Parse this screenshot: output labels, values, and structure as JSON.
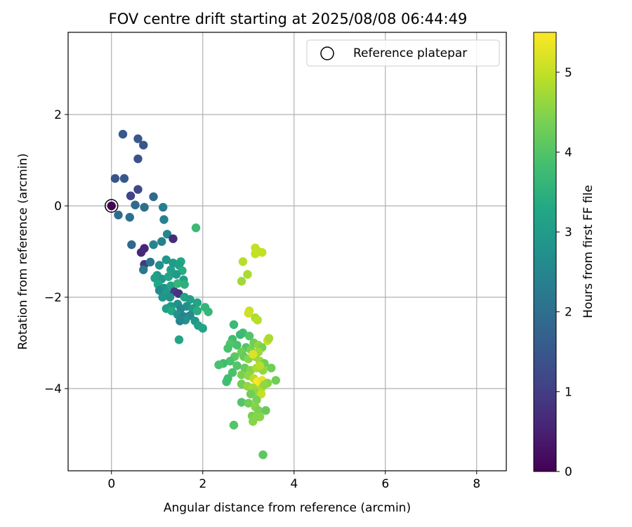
{
  "chart_data": {
    "type": "scatter",
    "title": "FOV centre drift starting at 2025/08/08 06:44:49",
    "xlabel": "Angular distance from reference (arcmin)",
    "ylabel": "Rotation from reference (arcmin)",
    "xlim": [
      -0.95,
      8.65
    ],
    "ylim": [
      -5.8,
      3.8
    ],
    "x_ticks": [
      0,
      2,
      4,
      6,
      8
    ],
    "y_ticks": [
      -4,
      -2,
      0,
      2
    ],
    "grid": true,
    "legend": {
      "placement": "top-right",
      "entries": [
        "Reference platepar"
      ]
    },
    "reference_point": {
      "x": 0,
      "y": 0
    },
    "colorbar": {
      "label": "Hours from first FF file",
      "range": [
        0,
        5.5
      ],
      "ticks": [
        0,
        1,
        2,
        3,
        4,
        5
      ],
      "colormap": "viridis"
    },
    "points": [
      [
        0,
        0,
        0.05
      ],
      [
        0.25,
        1.57,
        1.55
      ],
      [
        0.58,
        1.47,
        1.5
      ],
      [
        0.7,
        1.33,
        1.45
      ],
      [
        0.58,
        1.03,
        1.4
      ],
      [
        0.08,
        0.6,
        1.4
      ],
      [
        0.28,
        0.6,
        1.5
      ],
      [
        0.58,
        0.36,
        1.2
      ],
      [
        0.42,
        0.22,
        1.1
      ],
      [
        0.92,
        0.2,
        1.9
      ],
      [
        0.52,
        0.02,
        1.9
      ],
      [
        0.72,
        -0.03,
        2.0
      ],
      [
        1.13,
        -0.03,
        2.3
      ],
      [
        0.15,
        -0.2,
        1.9
      ],
      [
        0.4,
        -0.25,
        2.0
      ],
      [
        1.15,
        -0.3,
        2.4
      ],
      [
        1.22,
        -0.62,
        2.5
      ],
      [
        1.35,
        -0.72,
        0.7
      ],
      [
        1.1,
        -0.78,
        2.4
      ],
      [
        0.44,
        -0.85,
        1.9
      ],
      [
        0.92,
        -0.85,
        2.5
      ],
      [
        0.72,
        -0.93,
        0.6
      ],
      [
        0.65,
        -1.02,
        0.6
      ],
      [
        0.72,
        -1.28,
        0.9
      ],
      [
        0.85,
        -1.23,
        2.1
      ],
      [
        0.7,
        -1.4,
        2.2
      ],
      [
        1.05,
        -1.3,
        2.7
      ],
      [
        1.2,
        -1.18,
        2.9
      ],
      [
        1.35,
        -1.25,
        3.0
      ],
      [
        1.52,
        -1.22,
        3.3
      ],
      [
        1.48,
        -1.3,
        3.1
      ],
      [
        1.3,
        -1.4,
        3.1
      ],
      [
        1.55,
        -1.42,
        3.4
      ],
      [
        1.0,
        -1.52,
        3.0
      ],
      [
        1.1,
        -1.6,
        2.9
      ],
      [
        1.25,
        -1.55,
        3.2
      ],
      [
        1.42,
        -1.5,
        3.0
      ],
      [
        1.58,
        -1.62,
        3.1
      ],
      [
        0.95,
        -1.58,
        3.1
      ],
      [
        1.02,
        -1.72,
        3.3
      ],
      [
        1.15,
        -1.8,
        2.8
      ],
      [
        1.3,
        -1.75,
        3.2
      ],
      [
        1.45,
        -1.7,
        3.6
      ],
      [
        1.6,
        -1.72,
        3.5
      ],
      [
        1.05,
        -1.85,
        2.6
      ],
      [
        1.2,
        -1.9,
        3.0
      ],
      [
        1.38,
        -1.88,
        1.0
      ],
      [
        1.47,
        -1.92,
        0.8
      ],
      [
        1.28,
        -2.0,
        2.8
      ],
      [
        1.12,
        -2.0,
        2.9
      ],
      [
        1.6,
        -2.0,
        3.2
      ],
      [
        1.72,
        -2.05,
        3.1
      ],
      [
        1.88,
        -2.12,
        3.2
      ],
      [
        1.3,
        -2.2,
        3.0
      ],
      [
        1.45,
        -2.15,
        2.8
      ],
      [
        1.52,
        -2.25,
        2.5
      ],
      [
        1.2,
        -2.25,
        3.1
      ],
      [
        1.32,
        -2.3,
        3.3
      ],
      [
        1.65,
        -2.2,
        2.7
      ],
      [
        1.78,
        -2.25,
        3.0
      ],
      [
        1.88,
        -2.3,
        3.4
      ],
      [
        2.05,
        -2.22,
        3.6
      ],
      [
        2.12,
        -2.32,
        3.6
      ],
      [
        1.45,
        -2.38,
        2.8
      ],
      [
        1.58,
        -2.42,
        2.4
      ],
      [
        1.72,
        -2.4,
        2.6
      ],
      [
        1.62,
        -2.5,
        2.8
      ],
      [
        1.5,
        -2.52,
        2.5
      ],
      [
        1.83,
        -2.52,
        2.9
      ],
      [
        1.9,
        -2.62,
        3.1
      ],
      [
        2.0,
        -2.68,
        3.2
      ],
      [
        1.48,
        -2.93,
        3.2
      ],
      [
        1.85,
        -0.48,
        3.7
      ],
      [
        2.68,
        -2.6,
        3.7
      ],
      [
        2.88,
        -2.78,
        3.8
      ],
      [
        3.02,
        -2.85,
        4.0
      ],
      [
        2.82,
        -2.82,
        3.7
      ],
      [
        2.65,
        -2.92,
        3.8
      ],
      [
        2.6,
        -3.02,
        4.0
      ],
      [
        2.55,
        -3.12,
        3.9
      ],
      [
        2.75,
        -3.05,
        3.9
      ],
      [
        2.95,
        -3.1,
        4.0
      ],
      [
        2.85,
        -3.2,
        4.3
      ],
      [
        3.05,
        -3.15,
        4.4
      ],
      [
        3.12,
        -3.0,
        4.3
      ],
      [
        3.22,
        -3.05,
        4.6
      ],
      [
        3.3,
        -3.1,
        4.4
      ],
      [
        3.42,
        -2.95,
        5.0
      ],
      [
        3.45,
        -2.9,
        4.8
      ],
      [
        2.7,
        -3.3,
        4.1
      ],
      [
        2.9,
        -3.3,
        4.2
      ],
      [
        3.0,
        -3.35,
        4.5
      ],
      [
        3.15,
        -3.3,
        4.6
      ],
      [
        3.25,
        -3.4,
        4.7
      ],
      [
        3.35,
        -3.45,
        4.3
      ],
      [
        2.6,
        -3.4,
        3.9
      ],
      [
        2.45,
        -3.45,
        3.8
      ],
      [
        2.35,
        -3.48,
        3.9
      ],
      [
        2.75,
        -3.5,
        4.0
      ],
      [
        2.92,
        -3.55,
        4.2
      ],
      [
        3.05,
        -3.6,
        4.5
      ],
      [
        3.18,
        -3.55,
        4.8
      ],
      [
        3.32,
        -3.6,
        4.6
      ],
      [
        3.5,
        -3.55,
        4.3
      ],
      [
        2.65,
        -3.65,
        3.9
      ],
      [
        2.85,
        -3.7,
        4.4
      ],
      [
        3.0,
        -3.72,
        4.6
      ],
      [
        3.12,
        -3.78,
        4.9
      ],
      [
        3.2,
        -3.85,
        5.5
      ],
      [
        3.3,
        -3.82,
        5.3
      ],
      [
        3.42,
        -3.88,
        4.5
      ],
      [
        2.55,
        -3.78,
        3.8
      ],
      [
        2.52,
        -3.85,
        3.8
      ],
      [
        2.85,
        -3.9,
        4.3
      ],
      [
        2.98,
        -3.95,
        4.6
      ],
      [
        3.1,
        -3.98,
        4.7
      ],
      [
        3.28,
        -4.0,
        4.8
      ],
      [
        3.35,
        -3.92,
        4.6
      ],
      [
        3.6,
        -3.82,
        4.3
      ],
      [
        3.15,
        -4.08,
        4.6
      ],
      [
        3.05,
        -4.12,
        4.3
      ],
      [
        3.28,
        -4.12,
        5.0
      ],
      [
        3.18,
        -4.25,
        4.4
      ],
      [
        2.85,
        -4.3,
        4.0
      ],
      [
        3.0,
        -4.32,
        4.3
      ],
      [
        3.15,
        -4.4,
        4.5
      ],
      [
        3.22,
        -4.48,
        4.4
      ],
      [
        3.38,
        -4.48,
        4.2
      ],
      [
        3.08,
        -4.6,
        4.4
      ],
      [
        3.18,
        -4.62,
        4.5
      ],
      [
        3.25,
        -4.62,
        4.5
      ],
      [
        3.1,
        -4.72,
        4.5
      ],
      [
        2.68,
        -4.8,
        4.0
      ],
      [
        3.32,
        -5.45,
        4.1
      ],
      [
        3.15,
        -0.92,
        5.0
      ],
      [
        3.22,
        -1.0,
        5.0
      ],
      [
        3.3,
        -1.02,
        5.0
      ],
      [
        3.15,
        -1.05,
        5.0
      ],
      [
        2.88,
        -1.22,
        4.9
      ],
      [
        2.98,
        -1.5,
        4.8
      ],
      [
        2.85,
        -1.65,
        4.7
      ],
      [
        3.02,
        -2.3,
        5.0
      ],
      [
        3.0,
        -2.35,
        5.1
      ],
      [
        3.15,
        -2.45,
        4.8
      ],
      [
        3.2,
        -2.5,
        4.9
      ],
      [
        3.22,
        -3.2,
        4.7
      ],
      [
        3.1,
        -3.25,
        5.2
      ],
      [
        3.25,
        -3.5,
        4.9
      ]
    ]
  }
}
